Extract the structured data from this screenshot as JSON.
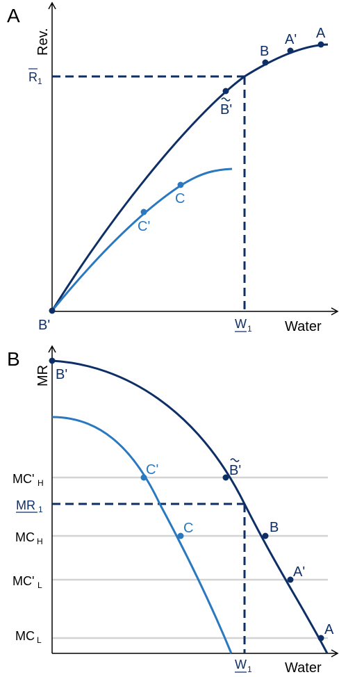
{
  "colors": {
    "dark": "#0e2f66",
    "light": "#2a78bf",
    "axis": "#000000",
    "grid": "#d3d3d3"
  },
  "panel_a": {
    "label": "A",
    "y_axis_label": "Rev.",
    "x_axis_label": "Water",
    "r1_main": "R",
    "r1_sub": "1",
    "w1_main": "W",
    "w1_sub": "1",
    "points": {
      "A": "A",
      "A_prime": "A'",
      "B": "B",
      "B_tilde": "B'",
      "B_prime": "B'",
      "C": "C",
      "C_prime": "C'"
    }
  },
  "panel_b": {
    "label": "B",
    "y_axis_label": "MR",
    "x_axis_label": "Water",
    "mr1_main": "MR",
    "mr1_sub": "1",
    "w1_main": "W",
    "w1_sub": "1",
    "mc_h_prime_main": "MC'",
    "mc_h_prime_sub": "H",
    "mc_h_main": "MC",
    "mc_h_sub": "H",
    "mc_l_prime_main": "MC'",
    "mc_l_prime_sub": "L",
    "mc_l_main": "MC",
    "mc_l_sub": "L",
    "points": {
      "A": "A",
      "A_prime": "A'",
      "B": "B",
      "B_tilde": "B'",
      "B_prime": "B'",
      "C": "C",
      "C_prime": "C'"
    }
  }
}
